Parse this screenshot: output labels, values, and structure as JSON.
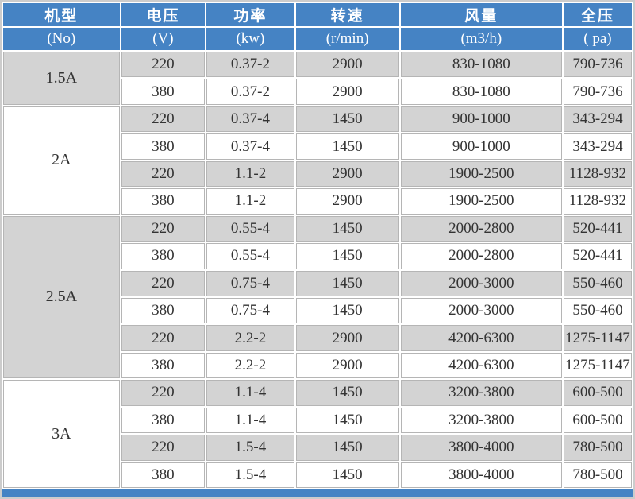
{
  "colors": {
    "header_bg": "#4583c4",
    "header_text": "#ffffff",
    "row_alt_bg": "#d3d3d3",
    "row_bg": "#ffffff",
    "cell_border": "#b5b5b5",
    "outer_border": "#cccccc",
    "text": "#333333",
    "bottom_bar": "#4583c4"
  },
  "table": {
    "columns": [
      {
        "title": "机型",
        "unit": "(No)"
      },
      {
        "title": "电压",
        "unit": "(V)"
      },
      {
        "title": "功率",
        "unit": "(kw)"
      },
      {
        "title": "转速",
        "unit": "(r/min)"
      },
      {
        "title": "风量",
        "unit": "(m3/h)"
      },
      {
        "title": "全压",
        "unit": "( pa)"
      }
    ],
    "groups": [
      {
        "model": "1.5A",
        "shade": "gray",
        "rows": [
          [
            "220",
            "0.37-2",
            "2900",
            "830-1080",
            "790-736"
          ],
          [
            "380",
            "0.37-2",
            "2900",
            "830-1080",
            "790-736"
          ]
        ]
      },
      {
        "model": "2A",
        "shade": "white",
        "rows": [
          [
            "220",
            "0.37-4",
            "1450",
            "900-1000",
            "343-294"
          ],
          [
            "380",
            "0.37-4",
            "1450",
            "900-1000",
            "343-294"
          ],
          [
            "220",
            "1.1-2",
            "2900",
            "1900-2500",
            "1128-932"
          ],
          [
            "380",
            "1.1-2",
            "2900",
            "1900-2500",
            "1128-932"
          ]
        ]
      },
      {
        "model": "2.5A",
        "shade": "gray",
        "rows": [
          [
            "220",
            "0.55-4",
            "1450",
            "2000-2800",
            "520-441"
          ],
          [
            "380",
            "0.55-4",
            "1450",
            "2000-2800",
            "520-441"
          ],
          [
            "220",
            "0.75-4",
            "1450",
            "2000-3000",
            "550-460"
          ],
          [
            "380",
            "0.75-4",
            "1450",
            "2000-3000",
            "550-460"
          ],
          [
            "220",
            "2.2-2",
            "2900",
            "4200-6300",
            "1275-1147"
          ],
          [
            "380",
            "2.2-2",
            "2900",
            "4200-6300",
            "1275-1147"
          ]
        ]
      },
      {
        "model": "3A",
        "shade": "white",
        "rows": [
          [
            "220",
            "1.1-4",
            "1450",
            "3200-3800",
            "600-500"
          ],
          [
            "380",
            "1.1-4",
            "1450",
            "3200-3800",
            "600-500"
          ],
          [
            "220",
            "1.5-4",
            "1450",
            "3800-4000",
            "780-500"
          ],
          [
            "380",
            "1.5-4",
            "1450",
            "3800-4000",
            "780-500"
          ]
        ]
      }
    ]
  }
}
